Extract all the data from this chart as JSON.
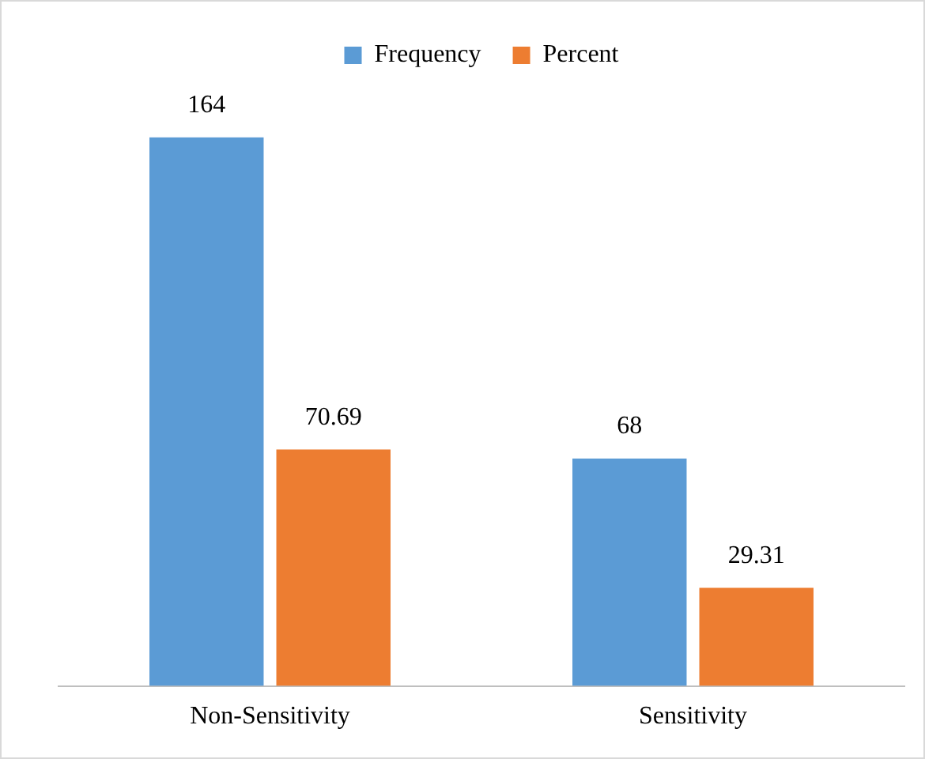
{
  "chart_data": {
    "type": "bar",
    "categories": [
      "Non-Sensitivity",
      "Sensitivity"
    ],
    "series": [
      {
        "name": "Frequency",
        "color": "#5b9bd5",
        "values": [
          164,
          68
        ]
      },
      {
        "name": "Percent",
        "color": "#ed7d31",
        "values": [
          70.69,
          29.31
        ]
      }
    ],
    "data_labels": true,
    "grid": false,
    "legend": "top"
  }
}
